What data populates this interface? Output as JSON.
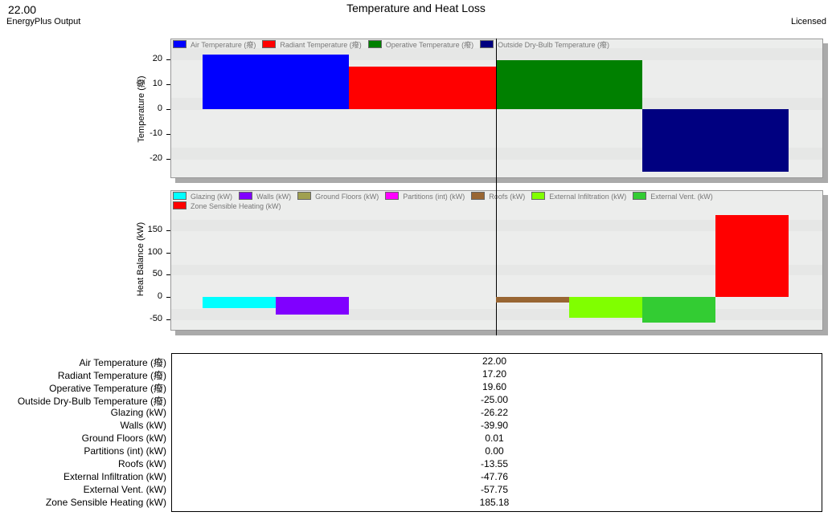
{
  "header": {
    "value": "22.00",
    "source": "EnergyPlus Output",
    "title": "Temperature and Heat Loss",
    "license": "Licensed"
  },
  "chart_data": [
    {
      "type": "bar",
      "ylabel": "Temperature (癈)",
      "ylim": [
        -25,
        25
      ],
      "yticks": [
        -20,
        -10,
        0,
        10,
        20
      ],
      "series": [
        {
          "name": "Air Temperature (癈)",
          "color": "#0000ff",
          "value": 22.0
        },
        {
          "name": "Radiant Temperature (癈)",
          "color": "#ff0000",
          "value": 17.2
        },
        {
          "name": "Operative Temperature (癈)",
          "color": "#008000",
          "value": 19.6
        },
        {
          "name": "Outside Dry-Bulb Temperature (癈)",
          "color": "#000080",
          "value": -25.0
        }
      ]
    },
    {
      "type": "bar",
      "ylabel": "Heat Balance (kW)",
      "ylim": [
        -60,
        190
      ],
      "yticks": [
        -50,
        0,
        50,
        100,
        150
      ],
      "series": [
        {
          "name": "Glazing (kW)",
          "color": "#00ffff",
          "value": -26.22
        },
        {
          "name": "Walls (kW)",
          "color": "#8000ff",
          "value": -39.9
        },
        {
          "name": "Ground Floors (kW)",
          "color": "#a0a050",
          "value": 0.01
        },
        {
          "name": "Partitions (int) (kW)",
          "color": "#ff00ff",
          "value": 0.0
        },
        {
          "name": "Roofs (kW)",
          "color": "#996633",
          "value": -13.55
        },
        {
          "name": "External Infiltration (kW)",
          "color": "#80ff00",
          "value": -47.76
        },
        {
          "name": "External Vent. (kW)",
          "color": "#33cc33",
          "value": -57.75
        },
        {
          "name": "Zone Sensible Heating (kW)",
          "color": "#ff0000",
          "value": 185.18
        }
      ]
    }
  ],
  "table": [
    {
      "label": "Air Temperature (癈)",
      "value": "22.00"
    },
    {
      "label": "Radiant Temperature (癈)",
      "value": "17.20"
    },
    {
      "label": "Operative Temperature (癈)",
      "value": "19.60"
    },
    {
      "label": "Outside Dry-Bulb Temperature (癈)",
      "value": "-25.00"
    },
    {
      "label": "Glazing (kW)",
      "value": "-26.22"
    },
    {
      "label": "Walls (kW)",
      "value": "-39.90"
    },
    {
      "label": "Ground Floors (kW)",
      "value": "0.01"
    },
    {
      "label": "Partitions (int) (kW)",
      "value": "0.00"
    },
    {
      "label": "Roofs (kW)",
      "value": "-13.55"
    },
    {
      "label": "External Infiltration (kW)",
      "value": "-47.76"
    },
    {
      "label": "External Vent. (kW)",
      "value": "-57.75"
    },
    {
      "label": "Zone Sensible Heating (kW)",
      "value": "185.18"
    }
  ]
}
